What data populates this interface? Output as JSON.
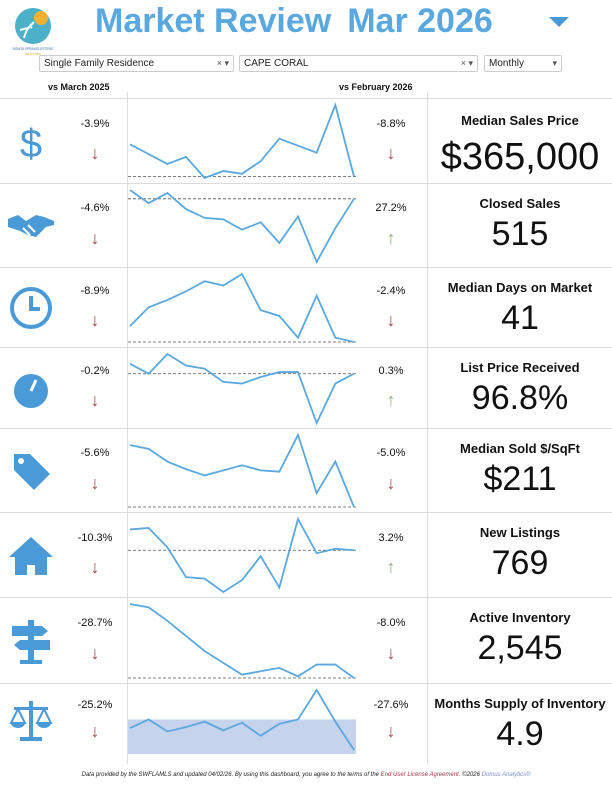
{
  "logo": {
    "text_top": "BONITA SPRINGS-ESTERO",
    "text_bottom": "REALTORS"
  },
  "header": {
    "title": "Market Review",
    "period": "Mar 2026"
  },
  "filters": {
    "property_type": "Single Family Residence",
    "city": "CAPE CORAL",
    "frequency": "Monthly"
  },
  "subheaders": {
    "yoy": "vs March 2025",
    "mom": "vs February 2026"
  },
  "colors": {
    "accent": "#5aa8e0",
    "down": "#a84444",
    "up": "#8cb36a"
  },
  "metrics": [
    {
      "label": "Median Sales Price",
      "value": "$365,000",
      "yoy": "-3.9%",
      "yoy_dir": "down",
      "mom": "-8.8%",
      "mom_dir": "down",
      "icon": "dollar-icon",
      "spark": [
        45,
        38,
        31,
        36,
        21,
        26,
        24,
        33,
        49,
        44,
        39,
        73,
        22
      ]
    },
    {
      "label": "Closed Sales",
      "value": "515",
      "yoy": "-4.6%",
      "yoy_dir": "down",
      "mom": "27.2%",
      "mom_dir": "up",
      "icon": "handshake-icon",
      "spark": [
        54,
        45,
        52,
        41,
        35,
        34,
        27,
        32,
        18,
        36,
        5,
        28,
        48
      ]
    },
    {
      "label": "Median Days on Market",
      "value": "41",
      "yoy": "-8.9%",
      "yoy_dir": "down",
      "mom": "-2.4%",
      "mom_dir": "down",
      "icon": "clock-icon",
      "spark": [
        14,
        27,
        32,
        38,
        45,
        42,
        50,
        25,
        21,
        6,
        35,
        6,
        3
      ]
    },
    {
      "label": "List Price Received",
      "value": "96.8%",
      "yoy": "-0.2%",
      "yoy_dir": "down",
      "mom": "0.3%",
      "mom_dir": "up",
      "icon": "gauge-icon",
      "spark": [
        52,
        46,
        58,
        51,
        49,
        41,
        40,
        44,
        47,
        47,
        16,
        40,
        46
      ]
    },
    {
      "label": "Median Sold $/SqFt",
      "value": "$211",
      "yoy": "-5.6%",
      "yoy_dir": "down",
      "mom": "-5.0%",
      "mom_dir": "down",
      "icon": "price-tag-icon",
      "spark": [
        54,
        51,
        41,
        35,
        30,
        34,
        38,
        34,
        33,
        62,
        16,
        41,
        5
      ]
    },
    {
      "label": "New Listings",
      "value": "769",
      "yoy": "-10.3%",
      "yoy_dir": "down",
      "mom": "3.2%",
      "mom_dir": "up",
      "icon": "house-icon",
      "spark": [
        59,
        60,
        47,
        27,
        26,
        17,
        25,
        41,
        20,
        66,
        43,
        46,
        45
      ]
    },
    {
      "label": "Active Inventory",
      "value": "2,545",
      "yoy": "-28.7%",
      "yoy_dir": "down",
      "mom": "-8.0%",
      "mom_dir": "down",
      "icon": "signpost-icon",
      "spark": [
        55,
        53,
        45,
        36,
        27,
        20,
        13,
        15,
        17,
        12,
        19,
        19,
        11
      ]
    },
    {
      "label": "Months Supply of Inventory",
      "value": "4.9",
      "yoy": "-25.2%",
      "yoy_dir": "down",
      "mom": "-27.6%",
      "mom_dir": "down",
      "icon": "scale-icon",
      "spark": [
        22,
        30,
        19,
        23,
        28,
        20,
        27,
        15,
        26,
        30,
        57,
        28,
        2
      ]
    }
  ],
  "footer": {
    "text": "Data provided by the SWFLAMLS and updated 04/02/26.  By using this dashboard, you agree to the terms of the ",
    "link": "End User License Agreement.",
    "copyright": " ©2026 ",
    "brand": "Domus Analytics®"
  }
}
